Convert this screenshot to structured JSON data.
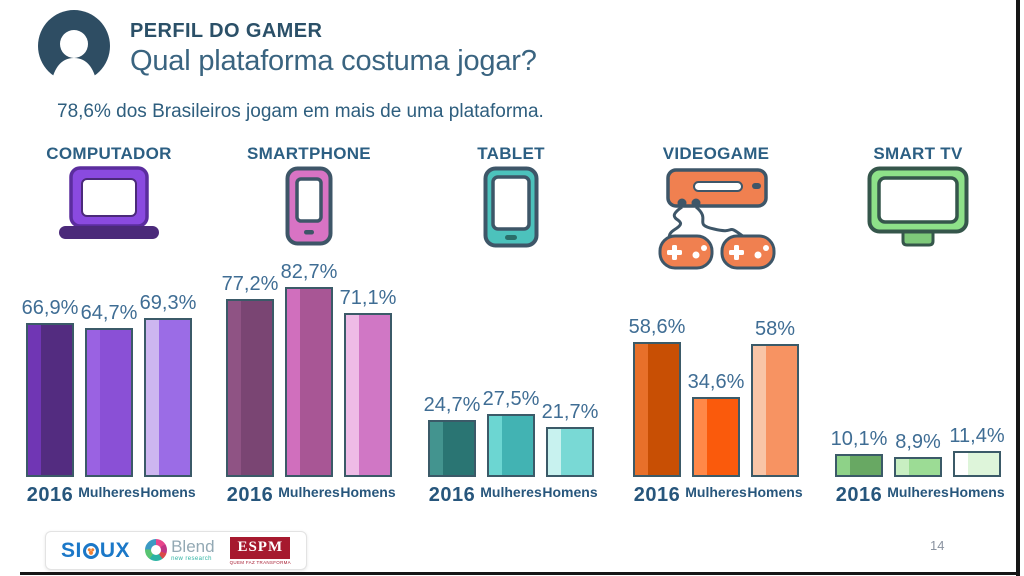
{
  "header": {
    "eyebrow": "PERFIL DO GAMER",
    "title": "Qual plataforma costuma jogar?",
    "subtitle": "78,6% dos Brasileiros jogam em mais de uma plataforma.",
    "avatar_icon": "person-icon"
  },
  "chart_data": {
    "type": "bar",
    "title": "Qual plataforma costuma jogar?",
    "unit": "%",
    "ylim": [
      0,
      100
    ],
    "grid": false,
    "legend_position": "below-bars-as-category-labels",
    "series_labels": [
      "2016",
      "Mulheres",
      "Homens"
    ],
    "bar_outline_color": "#3b5a68",
    "groups": [
      {
        "category": "COMPUTADOR",
        "icon": "laptop-icon",
        "values": [
          66.9,
          64.7,
          69.3
        ],
        "value_labels": [
          "66,9%",
          "64,7%",
          "69,3%"
        ],
        "bar_colors": [
          {
            "strip": "#7036b4",
            "body": "#532c80"
          },
          {
            "strip": "#9a62e2",
            "body": "#8a50d6"
          },
          {
            "strip": "#cdb6f0",
            "body": "#9b6ce6"
          }
        ]
      },
      {
        "category": "SMARTPHONE",
        "icon": "smartphone-icon",
        "values": [
          77.2,
          82.7,
          71.1
        ],
        "value_labels": [
          "77,2%",
          "82,7%",
          "71,1%"
        ],
        "bar_colors": [
          {
            "strip": "#8f5384",
            "body": "#7a4573"
          },
          {
            "strip": "#d06fbd",
            "body": "#a85695"
          },
          {
            "strip": "#eebbe6",
            "body": "#d077c5"
          }
        ]
      },
      {
        "category": "TABLET",
        "icon": "tablet-icon",
        "values": [
          24.7,
          27.5,
          21.7
        ],
        "value_labels": [
          "24,7%",
          "27,5%",
          "21,7%"
        ],
        "bar_colors": [
          {
            "strip": "#43948f",
            "body": "#2a7573"
          },
          {
            "strip": "#6cd6d2",
            "body": "#42b3b3"
          },
          {
            "strip": "#c8f2ef",
            "body": "#79d9d5"
          }
        ]
      },
      {
        "category": "VIDEOGAME",
        "icon": "videogame-icon",
        "values": [
          58.6,
          34.6,
          58
        ],
        "value_labels": [
          "58,6%",
          "34,6%",
          "58%"
        ],
        "bar_colors": [
          {
            "strip": "#e8702a",
            "body": "#c84f04"
          },
          {
            "strip": "#ff8848",
            "body": "#fa5a0c"
          },
          {
            "strip": "#f9c5a7",
            "body": "#f79362"
          }
        ]
      },
      {
        "category": "SMART TV",
        "icon": "smart-tv-icon",
        "values": [
          10.1,
          8.9,
          11.4
        ],
        "value_labels": [
          "10,1%",
          "8,9%",
          "11,4%"
        ],
        "bar_colors": [
          {
            "strip": "#8ed288",
            "body": "#68a863"
          },
          {
            "strip": "#c8efc2",
            "body": "#9cdc95"
          },
          {
            "strip": "#ffffff",
            "body": "#def5da"
          }
        ]
      }
    ]
  },
  "footer": {
    "page_number": "14",
    "logos": {
      "sioux": {
        "pre": "SI",
        "post": "UX",
        "accent_color": "#1b78c8"
      },
      "blend": {
        "name": "Blend",
        "sub": "new research"
      },
      "espm": {
        "name": "ESPM",
        "sub": "QUEM FAZ TRANSFORMA",
        "brand_color": "#a6192e"
      }
    }
  }
}
